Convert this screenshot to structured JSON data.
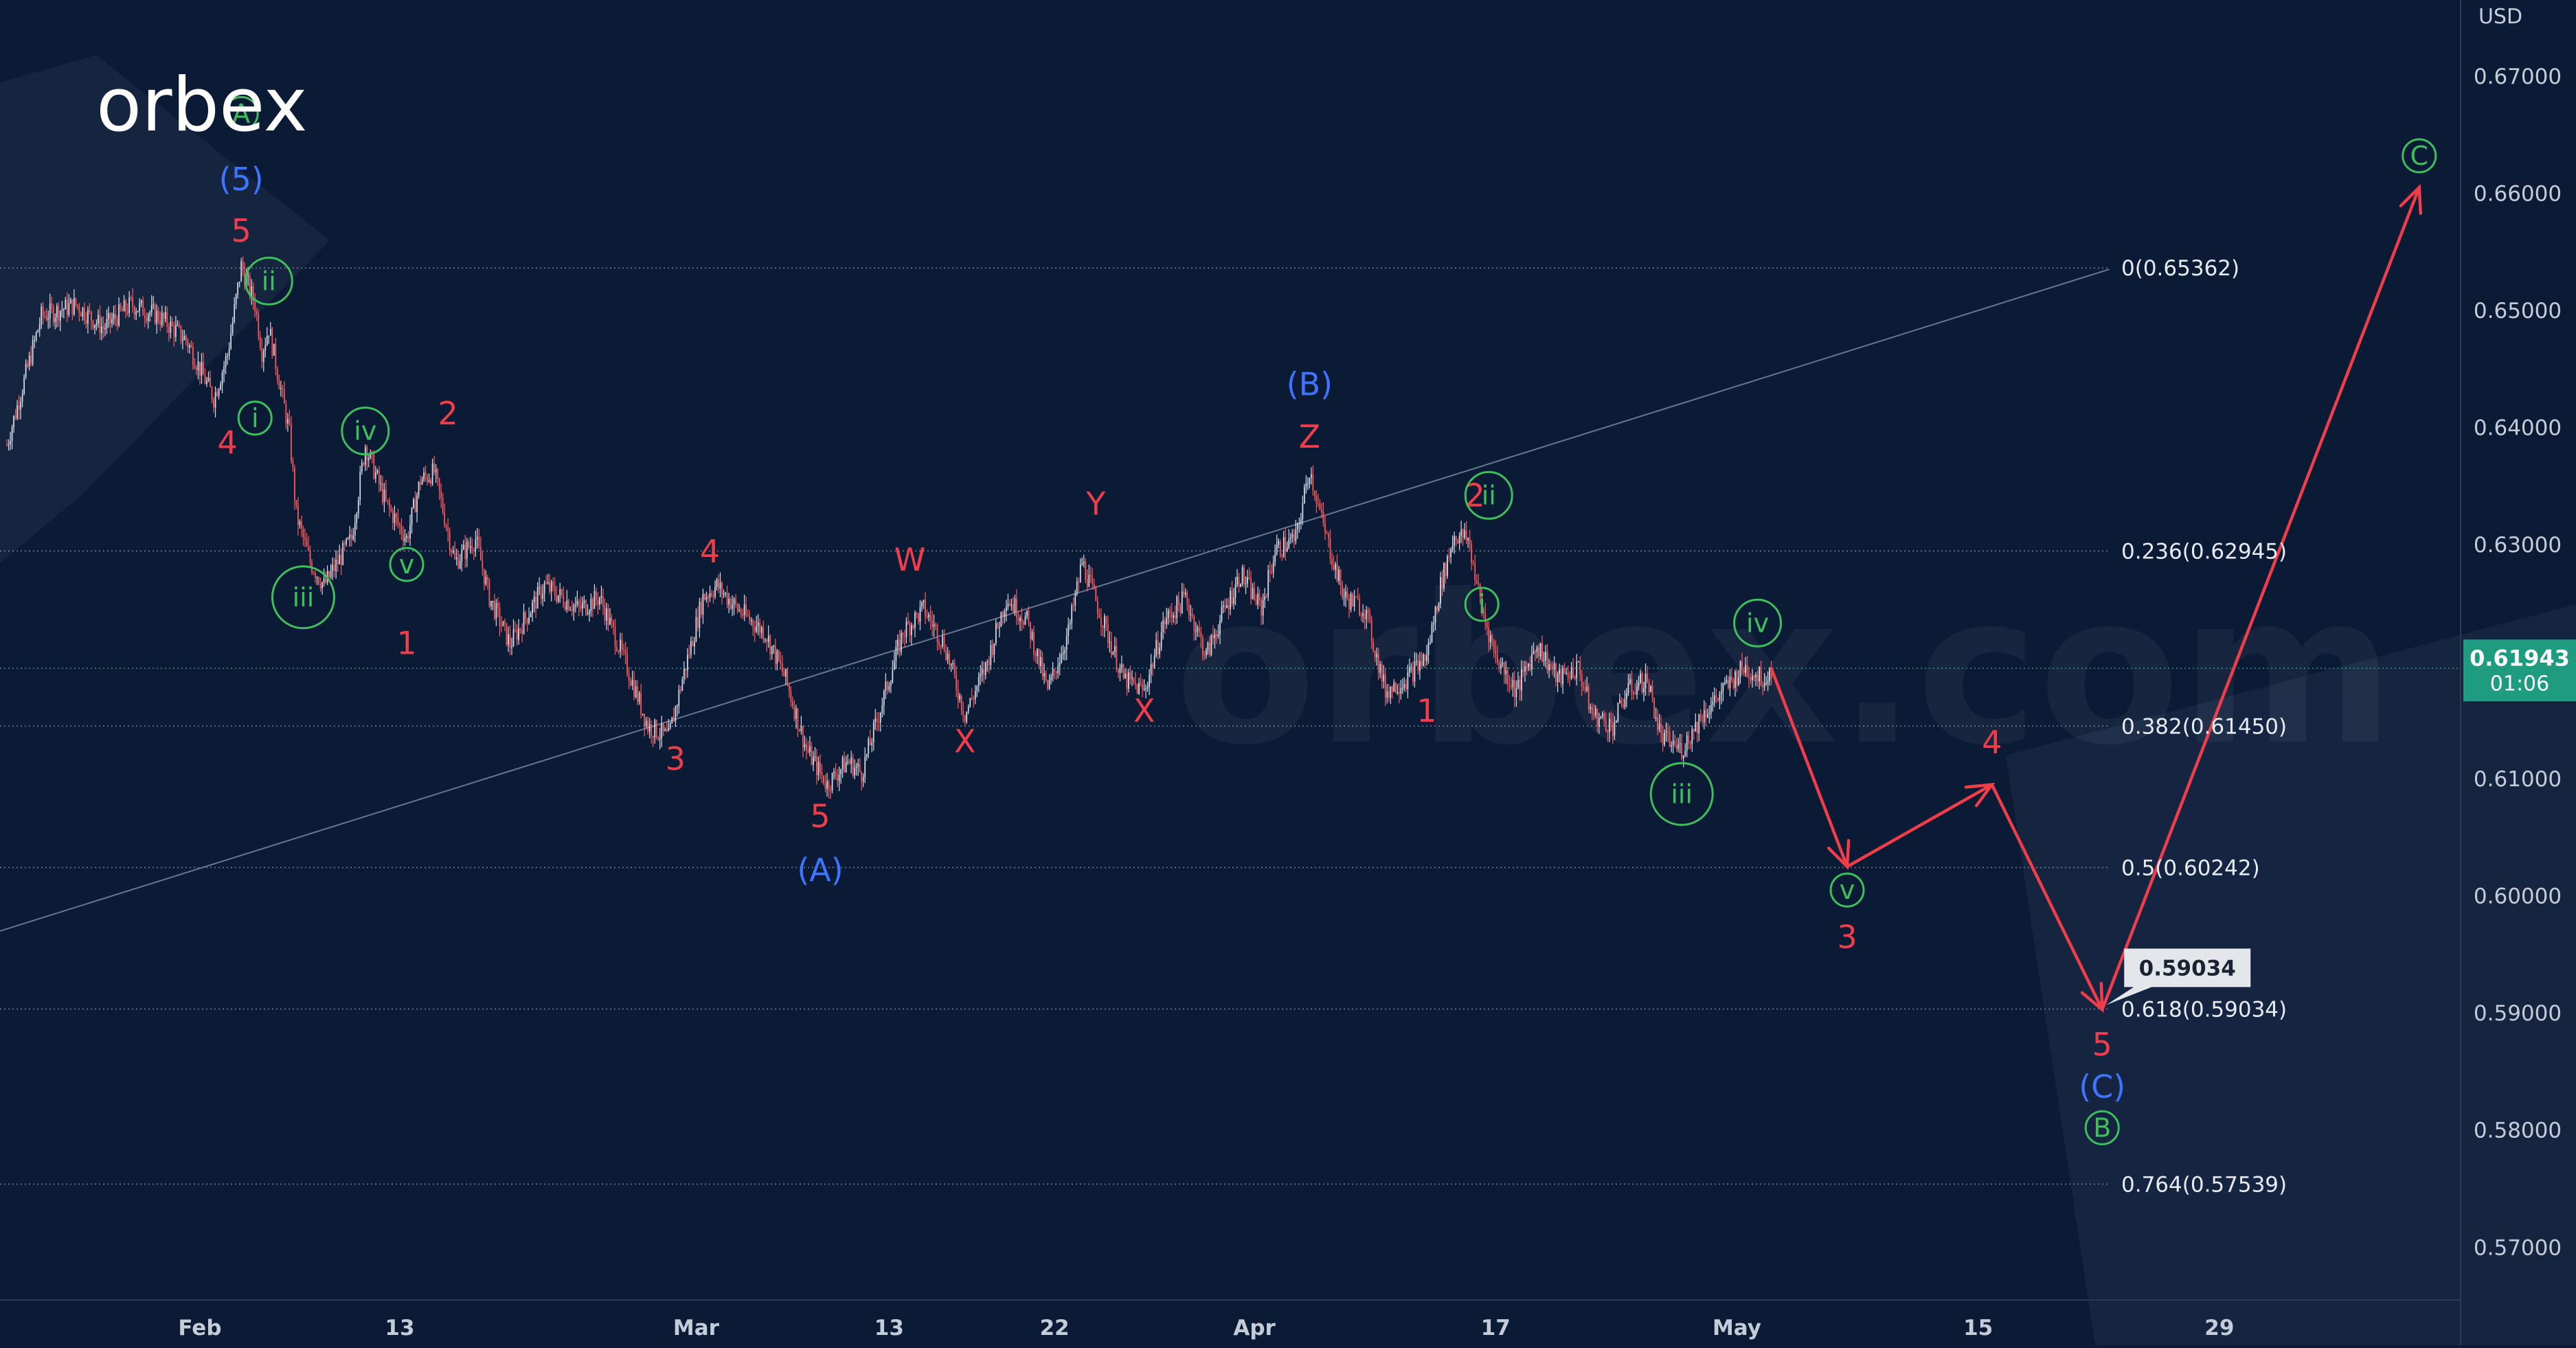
{
  "brand": {
    "logo_text": "orbex",
    "watermark_text": "orbex.com"
  },
  "colors": {
    "background": "#0b1a35",
    "candle_up": "#d7dde8",
    "candle_down": "#ff5a5a",
    "wave_red": "#ef3e4a",
    "wave_blue": "#3f74ff",
    "wave_green": "#3fbf5c",
    "price_tag": "#1f9c7f",
    "axis_text": "#c4ccd8",
    "fib_text": "#e6ebf2"
  },
  "chart_data": {
    "type": "line",
    "instrument_unit": "USD",
    "ylim": [
      0.5655,
      0.6765
    ],
    "y_ticks": [
      0.67,
      0.66,
      0.65,
      0.64,
      0.63,
      0.62,
      0.61,
      0.6,
      0.59,
      0.58,
      0.57
    ],
    "y_tick_labels": [
      "0.67000",
      "0.66000",
      "0.65000",
      "0.64000",
      "0.63000",
      "0.62000",
      "0.61000",
      "0.60000",
      "0.59000",
      "0.58000",
      "0.57000"
    ],
    "x_tick_labels": [
      {
        "label": "Feb",
        "bar": 28
      },
      {
        "label": "13",
        "bar": 57
      },
      {
        "label": "Mar",
        "bar": 100
      },
      {
        "label": "13",
        "bar": 128
      },
      {
        "label": "22",
        "bar": 152
      },
      {
        "label": "Apr",
        "bar": 181
      },
      {
        "label": "17",
        "bar": 216
      },
      {
        "label": "May",
        "bar": 251
      },
      {
        "label": "15",
        "bar": 286
      },
      {
        "label": "29",
        "bar": 321
      }
    ],
    "x_range": [
      -1,
      356
    ],
    "current_price": {
      "label": "0.61943",
      "value": 0.61943,
      "countdown": "01:06"
    },
    "target_price_tag": {
      "label": "0.59034",
      "value": 0.59034
    },
    "fib_levels": [
      {
        "label": "0(0.65362)",
        "value": 0.65362
      },
      {
        "label": "0.236(0.62945)",
        "value": 0.62945
      },
      {
        "label": "0.382(0.61450)",
        "value": 0.6145
      },
      {
        "label": "0.5(0.60242)",
        "value": 0.60242
      },
      {
        "label": "0.618(0.59034)",
        "value": 0.59034
      },
      {
        "label": "0.764(0.57539)",
        "value": 0.57539
      }
    ],
    "trendline": [
      {
        "bar": -1,
        "y": 0.597
      },
      {
        "bar": 305,
        "y": 0.6535
      }
    ],
    "price_path": [
      {
        "bar": 0,
        "y": 0.6385
      },
      {
        "bar": 5,
        "y": 0.6495
      },
      {
        "bar": 10,
        "y": 0.6505
      },
      {
        "bar": 14,
        "y": 0.6485
      },
      {
        "bar": 18,
        "y": 0.6505
      },
      {
        "bar": 22,
        "y": 0.6495
      },
      {
        "bar": 26,
        "y": 0.6475
      },
      {
        "bar": 30,
        "y": 0.6425
      },
      {
        "bar": 32,
        "y": 0.6462
      },
      {
        "bar": 34,
        "y": 0.6538
      },
      {
        "bar": 36,
        "y": 0.6505
      },
      {
        "bar": 37,
        "y": 0.6465
      },
      {
        "bar": 38,
        "y": 0.6485
      },
      {
        "bar": 39,
        "y": 0.6455
      },
      {
        "bar": 41,
        "y": 0.6395
      },
      {
        "bar": 42,
        "y": 0.6325
      },
      {
        "bar": 44,
        "y": 0.6285
      },
      {
        "bar": 46,
        "y": 0.6265
      },
      {
        "bar": 50,
        "y": 0.6305
      },
      {
        "bar": 52,
        "y": 0.6385
      },
      {
        "bar": 55,
        "y": 0.6335
      },
      {
        "bar": 58,
        "y": 0.6305
      },
      {
        "bar": 60,
        "y": 0.6355
      },
      {
        "bar": 62,
        "y": 0.6362
      },
      {
        "bar": 65,
        "y": 0.6285
      },
      {
        "bar": 68,
        "y": 0.6305
      },
      {
        "bar": 70,
        "y": 0.6255
      },
      {
        "bar": 73,
        "y": 0.6215
      },
      {
        "bar": 78,
        "y": 0.6265
      },
      {
        "bar": 83,
        "y": 0.6245
      },
      {
        "bar": 86,
        "y": 0.6255
      },
      {
        "bar": 90,
        "y": 0.6195
      },
      {
        "bar": 93,
        "y": 0.6145
      },
      {
        "bar": 96,
        "y": 0.6135
      },
      {
        "bar": 98,
        "y": 0.6185
      },
      {
        "bar": 101,
        "y": 0.6255
      },
      {
        "bar": 103,
        "y": 0.6265
      },
      {
        "bar": 106,
        "y": 0.6245
      },
      {
        "bar": 110,
        "y": 0.6225
      },
      {
        "bar": 113,
        "y": 0.6185
      },
      {
        "bar": 116,
        "y": 0.6125
      },
      {
        "bar": 119,
        "y": 0.6095
      },
      {
        "bar": 122,
        "y": 0.6115
      },
      {
        "bar": 124,
        "y": 0.6105
      },
      {
        "bar": 127,
        "y": 0.6165
      },
      {
        "bar": 130,
        "y": 0.6225
      },
      {
        "bar": 133,
        "y": 0.6245
      },
      {
        "bar": 136,
        "y": 0.6215
      },
      {
        "bar": 139,
        "y": 0.6155
      },
      {
        "bar": 142,
        "y": 0.6195
      },
      {
        "bar": 145,
        "y": 0.6255
      },
      {
        "bar": 148,
        "y": 0.6235
      },
      {
        "bar": 151,
        "y": 0.6175
      },
      {
        "bar": 154,
        "y": 0.6225
      },
      {
        "bar": 156,
        "y": 0.6285
      },
      {
        "bar": 159,
        "y": 0.6235
      },
      {
        "bar": 162,
        "y": 0.6185
      },
      {
        "bar": 165,
        "y": 0.6175
      },
      {
        "bar": 168,
        "y": 0.6235
      },
      {
        "bar": 171,
        "y": 0.6255
      },
      {
        "bar": 174,
        "y": 0.6205
      },
      {
        "bar": 176,
        "y": 0.6235
      },
      {
        "bar": 179,
        "y": 0.6275
      },
      {
        "bar": 182,
        "y": 0.6245
      },
      {
        "bar": 184,
        "y": 0.6295
      },
      {
        "bar": 187,
        "y": 0.6305
      },
      {
        "bar": 189,
        "y": 0.6365
      },
      {
        "bar": 191,
        "y": 0.6315
      },
      {
        "bar": 194,
        "y": 0.6255
      },
      {
        "bar": 197,
        "y": 0.6245
      },
      {
        "bar": 200,
        "y": 0.6175
      },
      {
        "bar": 203,
        "y": 0.6185
      },
      {
        "bar": 206,
        "y": 0.6205
      },
      {
        "bar": 208,
        "y": 0.6265
      },
      {
        "bar": 210,
        "y": 0.6308
      },
      {
        "bar": 212,
        "y": 0.6305
      },
      {
        "bar": 214,
        "y": 0.6245
      },
      {
        "bar": 216,
        "y": 0.6205
      },
      {
        "bar": 219,
        "y": 0.6175
      },
      {
        "bar": 222,
        "y": 0.6215
      },
      {
        "bar": 225,
        "y": 0.6185
      },
      {
        "bar": 228,
        "y": 0.6195
      },
      {
        "bar": 230,
        "y": 0.6155
      },
      {
        "bar": 233,
        "y": 0.6145
      },
      {
        "bar": 235,
        "y": 0.6175
      },
      {
        "bar": 238,
        "y": 0.6185
      },
      {
        "bar": 240,
        "y": 0.6135
      },
      {
        "bar": 243,
        "y": 0.6125
      },
      {
        "bar": 246,
        "y": 0.6155
      },
      {
        "bar": 249,
        "y": 0.6175
      },
      {
        "bar": 252,
        "y": 0.6195
      },
      {
        "bar": 255,
        "y": 0.6185
      },
      {
        "bar": 256,
        "y": 0.6194
      }
    ],
    "forecast_path": [
      {
        "bar": 256,
        "y": 0.6194
      },
      {
        "bar": 267,
        "y": 0.6025
      },
      {
        "bar": 288,
        "y": 0.6095
      },
      {
        "bar": 304,
        "y": 0.5903
      },
      {
        "bar": 350,
        "y": 0.6605
      }
    ],
    "wave_labels": [
      {
        "text": "Ⓐ",
        "bar": 34,
        "y": 0.6668,
        "color": "green"
      },
      {
        "text": "(5)",
        "bar": 34,
        "y": 0.6612,
        "color": "blue"
      },
      {
        "text": "5",
        "bar": 34,
        "y": 0.6568,
        "color": "red"
      },
      {
        "text": "ⓘ",
        "bar": 36,
        "y": 0.6408,
        "color": "green"
      },
      {
        "text": "ⓘⓘ",
        "bar": 38,
        "y": 0.6525,
        "color": "green"
      },
      {
        "text": "4",
        "bar": 32,
        "y": 0.6387,
        "color": "red"
      },
      {
        "text": "ⓘⓘⓘ",
        "bar": 43,
        "y": 0.6255,
        "color": "green"
      },
      {
        "text": "ⓘⓥ",
        "bar": 52,
        "y": 0.6397,
        "color": "green"
      },
      {
        "text": "ⓥ",
        "bar": 58,
        "y": 0.6283,
        "color": "green"
      },
      {
        "text": "2",
        "bar": 64,
        "y": 0.6412,
        "color": "red"
      },
      {
        "text": "1",
        "bar": 58,
        "y": 0.6216,
        "color": "red"
      },
      {
        "text": "4",
        "bar": 102,
        "y": 0.6294,
        "color": "red"
      },
      {
        "text": "3",
        "bar": 97,
        "y": 0.6117,
        "color": "red"
      },
      {
        "text": "W",
        "bar": 131,
        "y": 0.6287,
        "color": "red"
      },
      {
        "text": "5",
        "bar": 118,
        "y": 0.6068,
        "color": "red"
      },
      {
        "text": "(A)",
        "bar": 118,
        "y": 0.6022,
        "color": "blue"
      },
      {
        "text": "X",
        "bar": 139,
        "y": 0.6132,
        "color": "red"
      },
      {
        "text": "Y",
        "bar": 158,
        "y": 0.6335,
        "color": "red"
      },
      {
        "text": "X",
        "bar": 165,
        "y": 0.6158,
        "color": "red"
      },
      {
        "text": "(B)",
        "bar": 189,
        "y": 0.6437,
        "color": "blue"
      },
      {
        "text": "Z",
        "bar": 189,
        "y": 0.6392,
        "color": "red"
      },
      {
        "text": "2",
        "bar": 213,
        "y": 0.6342,
        "color": "red"
      },
      {
        "text": "ⓘⓘ",
        "bar": 215,
        "y": 0.6342,
        "color": "green"
      },
      {
        "text": "ⓘ",
        "bar": 214,
        "y": 0.6249,
        "color": "green"
      },
      {
        "text": "1",
        "bar": 206,
        "y": 0.6158,
        "color": "red"
      },
      {
        "text": "ⓘⓥ",
        "bar": 254,
        "y": 0.6233,
        "color": "green"
      },
      {
        "text": "ⓘⓘⓘ",
        "bar": 243,
        "y": 0.6087,
        "color": "green"
      },
      {
        "text": "ⓥ",
        "bar": 267,
        "y": 0.6005,
        "color": "green"
      },
      {
        "text": "3",
        "bar": 267,
        "y": 0.5965,
        "color": "red"
      },
      {
        "text": "4",
        "bar": 288,
        "y": 0.6131,
        "color": "red"
      },
      {
        "text": "5",
        "bar": 304,
        "y": 0.5873,
        "color": "red"
      },
      {
        "text": "(C)",
        "bar": 304,
        "y": 0.5837,
        "color": "blue"
      },
      {
        "text": "Ⓑ",
        "bar": 304,
        "y": 0.5802,
        "color": "green"
      },
      {
        "text": "Ⓒ",
        "bar": 350,
        "y": 0.6632,
        "color": "green"
      }
    ]
  }
}
